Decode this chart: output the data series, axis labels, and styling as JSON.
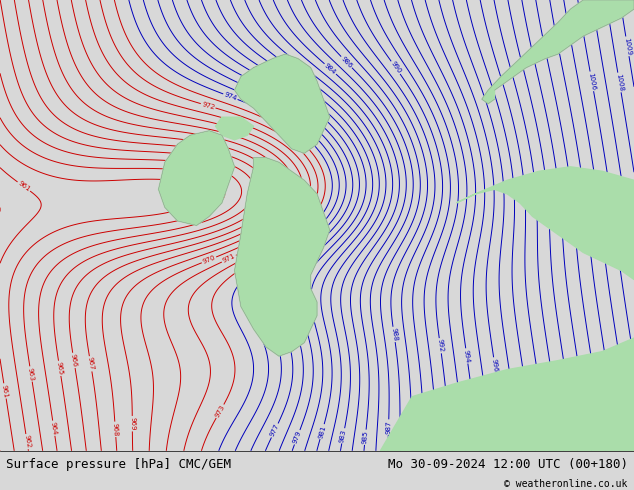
{
  "title_left": "Surface pressure [hPa] CMC/GEM",
  "title_right": "Mo 30-09-2024 12:00 UTC (00+180)",
  "copyright": "© weatheronline.co.uk",
  "bg_color": "#d8d8d8",
  "land_color": "#aaddaa",
  "contour_color_blue": "#0000bb",
  "contour_color_black": "#000000",
  "contour_color_red": "#cc0000",
  "bottom_bar_color": "#ffffff",
  "font_size_title": 9,
  "font_size_labels": 7,
  "dpi": 100,
  "figsize": [
    6.34,
    4.9
  ]
}
